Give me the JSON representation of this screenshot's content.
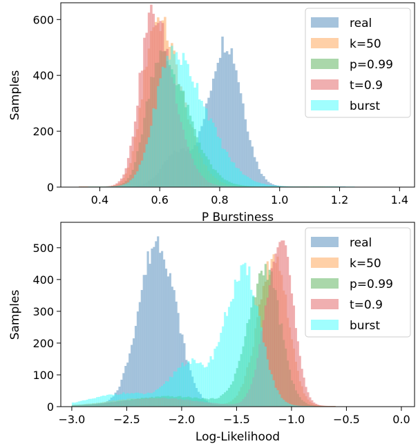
{
  "chart_data": [
    {
      "type": "histogram",
      "xlabel": "P Burstiness",
      "ylabel": "Samples",
      "xlim": [
        0.27,
        1.45
      ],
      "ylim": [
        0,
        660
      ],
      "xticks": [
        0.4,
        0.6,
        0.8,
        1.0,
        1.2,
        1.4
      ],
      "xtick_labels": [
        "0.4",
        "0.6",
        "0.8",
        "1.0",
        "1.2",
        "1.4"
      ],
      "yticks": [
        0,
        200,
        400,
        600
      ],
      "ytick_labels": [
        "0",
        "200",
        "400",
        "600"
      ],
      "grid": false,
      "legend": "top-right",
      "series": [
        {
          "name": "real",
          "color": "#7fa9cd",
          "opacity": 0.7,
          "peaks": [
            {
              "center": 0.82,
              "height": 520,
              "sl": 0.055,
              "sr": 0.055
            },
            {
              "center": 0.66,
              "height": 120,
              "sl": 0.05,
              "sr": 0.05
            }
          ],
          "range": [
            0.45,
            1.22
          ]
        },
        {
          "name": "k=50",
          "color": "#ffa95e",
          "opacity": 0.55,
          "peaks": [
            {
              "center": 0.59,
              "height": 600,
              "sl": 0.045,
              "sr": 0.08
            }
          ],
          "range": [
            0.33,
            1.15
          ]
        },
        {
          "name": "p=0.99",
          "color": "#64b764",
          "opacity": 0.55,
          "peaks": [
            {
              "center": 0.6,
              "height": 470,
              "sl": 0.045,
              "sr": 0.09
            }
          ],
          "range": [
            0.33,
            1.2
          ]
        },
        {
          "name": "t=0.9",
          "color": "#e6797b",
          "opacity": 0.6,
          "peaks": [
            {
              "center": 0.575,
              "height": 620,
              "sl": 0.042,
              "sr": 0.07
            }
          ],
          "range": [
            0.33,
            1.1
          ]
        },
        {
          "name": "burst",
          "color": "#2dfdfd",
          "opacity": 0.45,
          "peaks": [
            {
              "center": 0.64,
              "height": 480,
              "sl": 0.055,
              "sr": 0.11
            }
          ],
          "range": [
            0.36,
            1.25
          ]
        }
      ]
    },
    {
      "type": "histogram",
      "xlabel": "Log-Likelihood",
      "ylabel": "Samples",
      "xlim": [
        -3.1,
        0.12
      ],
      "ylim": [
        0,
        580
      ],
      "xticks": [
        -3.0,
        -2.5,
        -2.0,
        -1.5,
        -1.0,
        -0.5,
        0.0
      ],
      "xtick_labels": [
        "−3.0",
        "−2.5",
        "−2.0",
        "−1.5",
        "−1.0",
        "−0.5",
        "0.0"
      ],
      "yticks": [
        0,
        100,
        200,
        300,
        400,
        500
      ],
      "ytick_labels": [
        "0",
        "100",
        "200",
        "300",
        "400",
        "500"
      ],
      "grid": false,
      "legend": "top-right",
      "series": [
        {
          "name": "real",
          "color": "#7fa9cd",
          "opacity": 0.7,
          "peaks": [
            {
              "center": -2.22,
              "height": 520,
              "sl": 0.17,
              "sr": 0.17
            }
          ],
          "range": [
            -3.0,
            -1.5
          ]
        },
        {
          "name": "k=50",
          "color": "#ffa95e",
          "opacity": 0.55,
          "peaks": [
            {
              "center": -1.15,
              "height": 470,
              "sl": 0.15,
              "sr": 0.12
            },
            {
              "center": -2.3,
              "height": 25,
              "sl": 0.35,
              "sr": 0.35
            }
          ],
          "range": [
            -3.0,
            -0.6
          ]
        },
        {
          "name": "p=0.99",
          "color": "#64b764",
          "opacity": 0.55,
          "peaks": [
            {
              "center": -1.23,
              "height": 430,
              "sl": 0.16,
              "sr": 0.13
            },
            {
              "center": -2.1,
              "height": 30,
              "sl": 0.4,
              "sr": 0.4
            }
          ],
          "range": [
            -3.0,
            -0.6
          ]
        },
        {
          "name": "t=0.9",
          "color": "#e6797b",
          "opacity": 0.6,
          "peaks": [
            {
              "center": -1.1,
              "height": 550,
              "sl": 0.13,
              "sr": 0.11
            },
            {
              "center": -2.2,
              "height": 25,
              "sl": 0.35,
              "sr": 0.35
            }
          ],
          "range": [
            -3.0,
            -0.6
          ]
        },
        {
          "name": "burst",
          "color": "#2dfdfd",
          "opacity": 0.45,
          "peaks": [
            {
              "center": -1.42,
              "height": 420,
              "sl": 0.2,
              "sr": 0.14
            },
            {
              "center": -1.95,
              "height": 120,
              "sl": 0.15,
              "sr": 0.12
            },
            {
              "center": -2.5,
              "height": 40,
              "sl": 0.3,
              "sr": 0.3
            }
          ],
          "range": [
            -3.0,
            -0.8
          ]
        }
      ]
    }
  ]
}
